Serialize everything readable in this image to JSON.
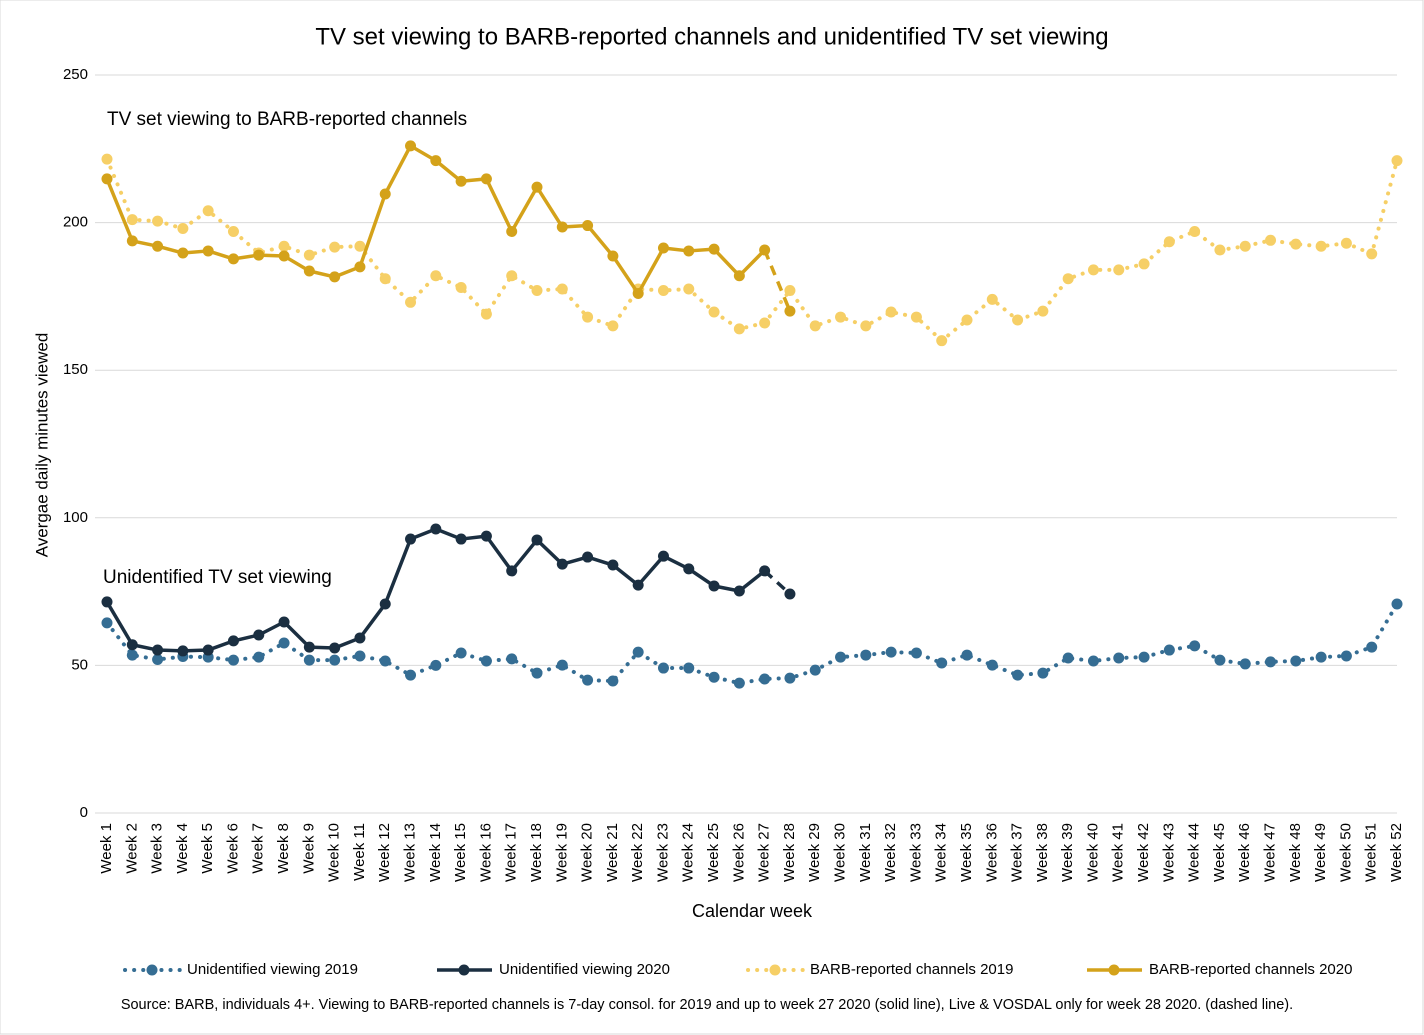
{
  "chart_data": {
    "type": "line",
    "title": "TV set viewing to BARB-reported channels and unidentified TV set viewing",
    "y_label": "Avergae daily minutes viewed",
    "x_label": "Calendar week",
    "annotations": [
      "TV set viewing to BARB-reported channels",
      "Unidentified TV set viewing"
    ],
    "source": "Source: BARB, individuals 4+. Viewing to BARB-reported channels is 7-day consol. for 2019 and up to week 27 2020 (solid line), Live & VOSDAL only for week 28 2020. (dashed line).",
    "categories": [
      "Week 1",
      "Week 2",
      "Week 3",
      "Week 4",
      "Week 5",
      "Week 6",
      "Week 7",
      "Week 8",
      "Week 9",
      "Week 10",
      "Week 11",
      "Week 12",
      "Week 13",
      "Week 14",
      "Week 15",
      "Week 16",
      "Week 17",
      "Week 18",
      "Week 19",
      "Week 20",
      "Week 21",
      "Week 22",
      "Week 23",
      "Week 24",
      "Week 25",
      "Week 26",
      "Week 27",
      "Week 28",
      "Week 29",
      "Week 30",
      "Week 31",
      "Week 32",
      "Week 33",
      "Week 34",
      "Week 35",
      "Week 36",
      "Week 37",
      "Week 38",
      "Week 39",
      "Week 40",
      "Week 41",
      "Week 42",
      "Week 43",
      "Week 44",
      "Week 45",
      "Week 46",
      "Week 47",
      "Week 48",
      "Week 49",
      "Week 50",
      "Week 51",
      "Week 52"
    ],
    "ylim": [
      0,
      250
    ],
    "yticks": [
      0,
      50,
      100,
      150,
      200,
      250
    ],
    "grid": true,
    "legend": "bottom",
    "series": [
      {
        "name": "Unidentified viewing 2019",
        "color": "#356d93",
        "dotted": true,
        "values": [
          64.4,
          53.5,
          52,
          53,
          52.8,
          51.8,
          52.8,
          57.6,
          51.8,
          51.8,
          53.2,
          51.5,
          46.7,
          50,
          54.2,
          51.5,
          52.2,
          47.4,
          50.1,
          45,
          44.7,
          54.5,
          49.1,
          49.1,
          46,
          44,
          45.4,
          45.7,
          48.4,
          52.8,
          53.5,
          54.5,
          54.2,
          50.8,
          53.5,
          50.1,
          46.7,
          47.4,
          52.5,
          51.5,
          52.5,
          52.8,
          55.2,
          56.6,
          51.8,
          50.5,
          51.2,
          51.5,
          52.8,
          53.2,
          56.2,
          70.8
        ]
      },
      {
        "name": "Unidentified viewing 2020",
        "color": "#1b2f41",
        "dashed_last_segment": true,
        "values": [
          71.5,
          57,
          55.2,
          54.9,
          55.2,
          58.3,
          60.3,
          64.7,
          56.2,
          55.9,
          59.3,
          70.8,
          92.8,
          96.2,
          92.8,
          93.8,
          82,
          92.5,
          84.3,
          86.7,
          84,
          77.2,
          87,
          82.7,
          76.9,
          75.2,
          82,
          74.2,
          null,
          null,
          null,
          null,
          null,
          null,
          null,
          null,
          null,
          null,
          null,
          null,
          null,
          null,
          null,
          null,
          null,
          null,
          null,
          null,
          null,
          null,
          null,
          null
        ]
      },
      {
        "name": "BARB-reported channels 2019",
        "color": "#f6cf66",
        "dotted": true,
        "values": [
          221.5,
          201,
          200.5,
          198,
          204,
          197,
          189.7,
          192,
          189,
          191.7,
          192,
          181,
          173,
          182,
          178,
          169,
          182,
          177,
          177.5,
          168,
          165,
          177.5,
          177,
          177.5,
          169.7,
          164,
          166,
          177,
          165,
          168,
          165,
          169.7,
          168,
          160,
          167,
          174,
          167,
          170,
          181,
          184,
          184,
          186,
          193.5,
          197,
          190.7,
          192,
          194,
          192.7,
          192,
          193,
          189.4,
          221
        ]
      },
      {
        "name": "BARB-reported channels 2020",
        "color": "#d4a21a",
        "dashed_last_segment": true,
        "values": [
          214.8,
          193.8,
          192,
          189.7,
          190.4,
          187.7,
          189,
          188.7,
          183.6,
          181.6,
          185,
          209.7,
          226,
          221,
          214,
          214.8,
          197,
          212,
          198.5,
          199,
          188.7,
          176,
          191.4,
          190.4,
          191,
          182,
          190.7,
          170,
          null,
          null,
          null,
          null,
          null,
          null,
          null,
          null,
          null,
          null,
          null,
          null,
          null,
          null,
          null,
          null,
          null,
          null,
          null,
          null,
          null,
          null,
          null,
          null
        ]
      }
    ]
  }
}
